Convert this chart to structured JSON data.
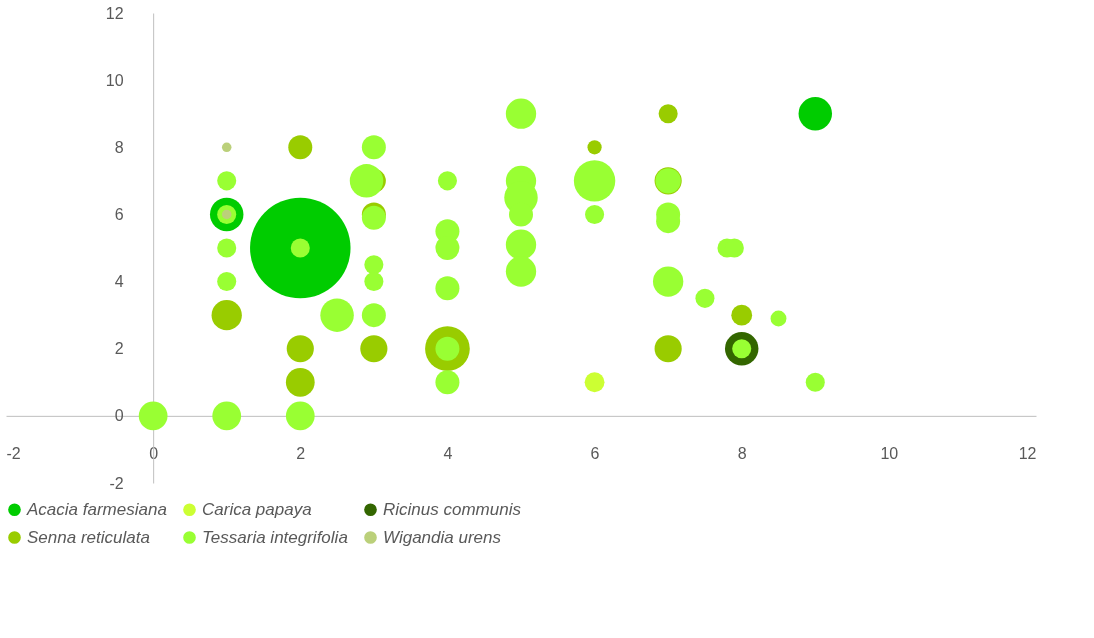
{
  "chart_data": {
    "type": "bubble",
    "xlim": [
      -2,
      12
    ],
    "ylim": [
      -2,
      12
    ],
    "xticks": [
      -2,
      0,
      2,
      4,
      6,
      8,
      10,
      12
    ],
    "yticks": [
      -2,
      0,
      2,
      4,
      6,
      8,
      10,
      12
    ],
    "grid": false,
    "legend": "bottom",
    "series": [
      {
        "name": "Acacia farmesiana",
        "color": "#00cc00",
        "x": [
          1,
          9,
          2
        ],
        "values": [
          6,
          9,
          5
        ],
        "sizes": [
          0.111,
          0.111,
          1
        ]
      },
      {
        "name": "Carica papaya",
        "color": "#ccff33",
        "x": [
          6
        ],
        "values": [
          1
        ],
        "sizes": [
          0.039
        ]
      },
      {
        "name": "Ricinus communis",
        "color": "#336600",
        "x": [
          8
        ],
        "values": [
          2
        ],
        "sizes": [
          0.111
        ]
      },
      {
        "name": "Senna reticulata",
        "color": "#99cc00",
        "x": [
          2,
          3,
          3,
          1,
          2,
          2,
          3,
          4,
          6,
          7,
          7,
          7,
          8
        ],
        "values": [
          8,
          7,
          6,
          3,
          2,
          1,
          2,
          2,
          8,
          9,
          7,
          2,
          3
        ],
        "sizes": [
          0.057,
          0.057,
          0.057,
          0.091,
          0.073,
          0.082,
          0.073,
          0.198,
          0.02,
          0.036,
          0.073,
          0.073,
          0.043
        ]
      },
      {
        "name": "Tessaria integrifolia",
        "color": "#99ff33",
        "x": [
          1,
          1,
          1,
          1,
          0,
          1,
          2,
          2,
          2.5,
          3,
          2.9,
          3,
          3,
          3,
          3,
          4,
          4,
          4,
          4,
          4,
          4,
          5,
          5,
          5,
          5,
          5,
          5,
          6,
          6,
          7,
          7,
          7,
          7,
          7.5,
          7.8,
          7.9,
          8,
          8.5,
          9
        ],
        "values": [
          7,
          6,
          5,
          4,
          0,
          0,
          0,
          5,
          3,
          8,
          7,
          5.9,
          4.5,
          4,
          3,
          7,
          5.5,
          5,
          3.8,
          2,
          1,
          9,
          7,
          6.5,
          6,
          5.1,
          4.3,
          7,
          6,
          7,
          6,
          5.8,
          4,
          3.5,
          5,
          5,
          2,
          2.9,
          1
        ],
        "sizes": [
          0.036,
          0.036,
          0.036,
          0.036,
          0.082,
          0.082,
          0.082,
          0.036,
          0.111,
          0.057,
          0.111,
          0.057,
          0.036,
          0.036,
          0.057,
          0.036,
          0.057,
          0.057,
          0.057,
          0.057,
          0.057,
          0.091,
          0.091,
          0.111,
          0.057,
          0.091,
          0.091,
          0.17,
          0.036,
          0.064,
          0.057,
          0.057,
          0.091,
          0.036,
          0.036,
          0.036,
          0.036,
          0.025,
          0.036
        ]
      },
      {
        "name": "Wigandia urens",
        "color": "#bbd07a",
        "x": [
          1,
          1
        ],
        "values": [
          8,
          6
        ],
        "sizes": [
          0.009,
          0.009
        ]
      }
    ]
  }
}
